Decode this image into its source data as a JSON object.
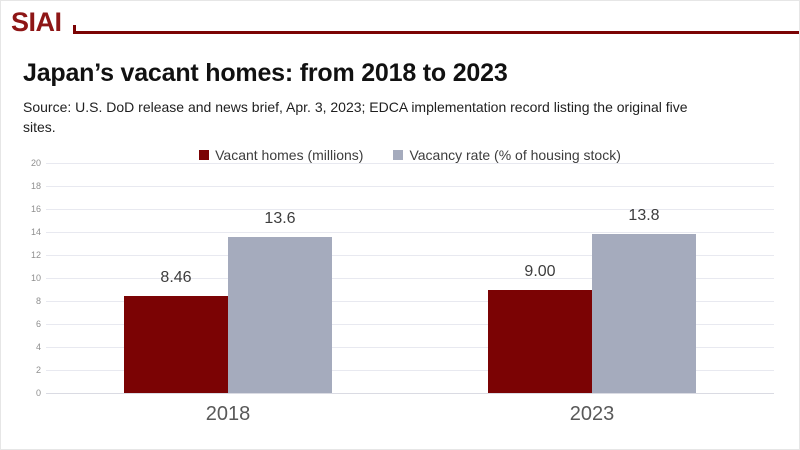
{
  "brand": {
    "logo": "SIAI",
    "logo_color": "#8E1616",
    "rule_color": "#7B0304"
  },
  "header": {
    "title": "Japan’s vacant homes: from 2018 to 2023",
    "source": "Source: U.S. DoD release and news brief, Apr. 3, 2023; EDCA implementation record listing the original five sites."
  },
  "chart_data": {
    "type": "bar",
    "categories": [
      "2018",
      "2023"
    ],
    "series": [
      {
        "name": "Vacant homes (millions)",
        "color": "#7B0304",
        "values": [
          8.46,
          9.0
        ],
        "labels": [
          "8.46",
          "9.00"
        ]
      },
      {
        "name": "Vacancy rate (% of housing stock)",
        "color": "#A5ABBD",
        "values": [
          13.6,
          13.8
        ],
        "labels": [
          "13.6",
          "13.8"
        ]
      }
    ],
    "ylim": [
      0,
      20
    ],
    "yticks": [
      0,
      2,
      4,
      6,
      8,
      10,
      12,
      14,
      16,
      18,
      20
    ],
    "grid": true,
    "gridline_color": "#E8E9F0",
    "baseline_color": "#DADBE3",
    "legend_position": "top",
    "tick_label_color": "#8f8f8f",
    "category_label_color": "#595959",
    "value_label_color": "#3d3d3d"
  }
}
